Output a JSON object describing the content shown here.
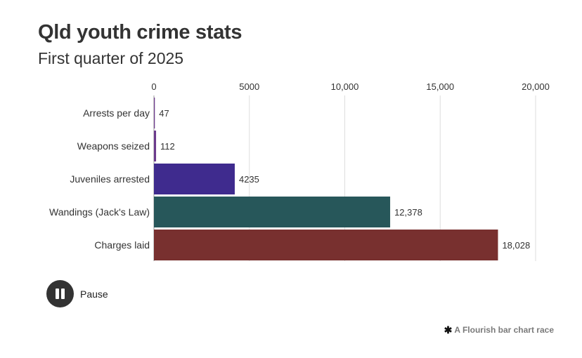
{
  "header": {
    "title": "Qld youth crime stats",
    "subtitle": "First quarter of 2025"
  },
  "chart_data": {
    "type": "bar",
    "orientation": "horizontal",
    "title": "Qld youth crime stats",
    "subtitle": "First quarter of 2025",
    "xlabel": "",
    "ylabel": "",
    "xlim": [
      0,
      20000
    ],
    "x_ticks": [
      {
        "value": 0,
        "label": "0"
      },
      {
        "value": 5000,
        "label": "5000"
      },
      {
        "value": 10000,
        "label": "10,000"
      },
      {
        "value": 15000,
        "label": "15,000"
      },
      {
        "value": 20000,
        "label": "20,000"
      }
    ],
    "tick_position": "top",
    "grid": true,
    "categories": [
      "Arrests per day",
      "Weapons seized",
      "Juveniles arrested",
      "Wandings (Jack's Law)",
      "Charges laid"
    ],
    "values": [
      47,
      112,
      4235,
      12378,
      18028
    ],
    "value_labels": [
      "47",
      "112",
      "4235",
      "12,378",
      "18,028"
    ],
    "colors": [
      "#6b3a8c",
      "#6b3a8c",
      "#3f2b8e",
      "#27575a",
      "#78302f"
    ]
  },
  "controls": {
    "pause_label": "Pause"
  },
  "footer": {
    "credit": "A Flourish bar chart race",
    "credit_icon": "flourish-asterisk-icon"
  }
}
